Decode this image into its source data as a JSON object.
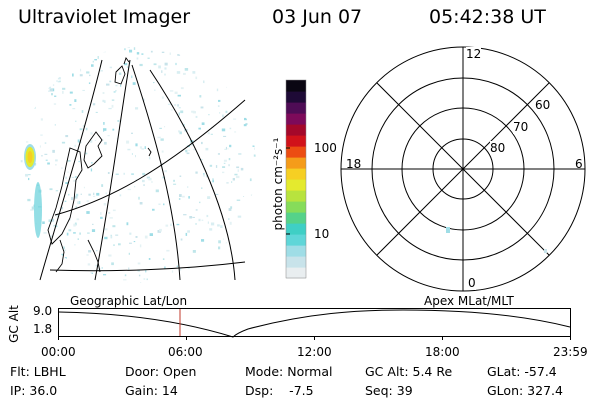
{
  "header": {
    "instrument": "Ultraviolet Imager",
    "date": "03 Jun 07",
    "time": "05:42:38 UT"
  },
  "colorbar": {
    "unit_label": "photon cm⁻²s⁻¹",
    "ticks": [
      "100",
      "10"
    ],
    "scale": "log",
    "colors": [
      "#e9eef0",
      "#c8e3ea",
      "#9fdde6",
      "#5fd6d8",
      "#3fcfc5",
      "#55d28a",
      "#86dc5a",
      "#b8e33e",
      "#e4ea2e",
      "#f6cf23",
      "#f59c1a",
      "#ec4d12",
      "#d1121a",
      "#a4082a",
      "#7d0a5a",
      "#4e0c55",
      "#1e0a36",
      "#0a0612"
    ]
  },
  "polar_plot": {
    "mlt_labels": [
      "12",
      "18",
      "6",
      "0"
    ],
    "mlat_labels": [
      "60",
      "70",
      "80"
    ]
  },
  "map_labels": {
    "left": "Geographic Lat/Lon",
    "right": "Apex MLat/MLT"
  },
  "altitude_plot": {
    "axis_label": "GC Alt",
    "y_ticks": [
      "9.0",
      "1.8"
    ],
    "x_ticks": [
      "00:00",
      "06:00",
      "12:00",
      "18:00",
      "23:59"
    ]
  },
  "status": {
    "filter": "Flt: LBHL",
    "ip": "IP: 36.0",
    "door": "Door: Open",
    "gain": "Gain: 14",
    "mode": "Mode: Normal",
    "dsp": "Dsp:    -7.5",
    "gc_alt": "GC Alt: 5.4 Re",
    "seq": "Seq: 39",
    "glat": "GLat: -57.4",
    "glon": "GLon: 327.4"
  }
}
